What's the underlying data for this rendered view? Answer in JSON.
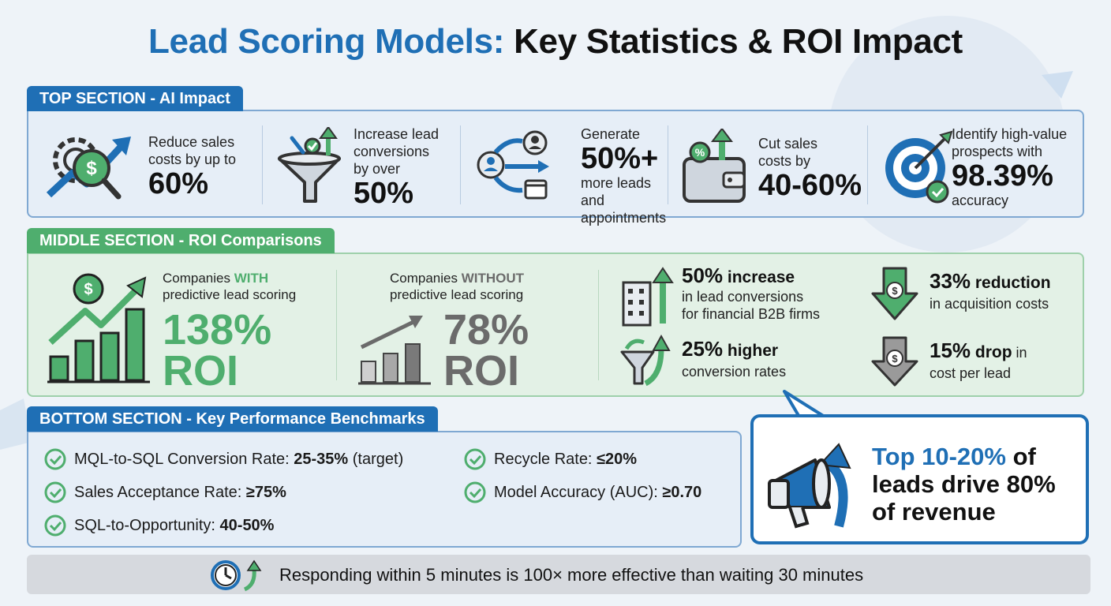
{
  "title": {
    "part1": "Lead Scoring Models:",
    "part2": "Key Statistics & ROI Impact"
  },
  "top": {
    "label": "TOP SECTION - AI Impact",
    "items": [
      {
        "line1": "Reduce sales",
        "line2": "costs by up to",
        "big": "60%",
        "icon": "gear-dollar-growth-icon"
      },
      {
        "line1": "Increase lead",
        "line2": "conversions",
        "line3": "by over",
        "big": "50%",
        "icon": "funnel-icon"
      },
      {
        "line1": "Generate",
        "big": "50%+",
        "line2": "more leads and",
        "line3": "appointments",
        "icon": "lead-flow-icon"
      },
      {
        "line1": "Cut sales",
        "line2": "costs by",
        "big": "40-60%",
        "icon": "wallet-icon"
      },
      {
        "line1": "Identify high-value",
        "line2": "prospects with",
        "big": "98.39%",
        "line3": "accuracy",
        "icon": "target-icon"
      }
    ]
  },
  "middle": {
    "label": "MIDDLE SECTION - ROI Comparisons",
    "with": {
      "pre": "Companies ",
      "emph": "WITH",
      "line2": "predictive lead scoring",
      "roi": "138%",
      "roi_label": "ROI",
      "color": "#4fae6e"
    },
    "without": {
      "pre": "Companies ",
      "emph": "WITHOUT",
      "line2": "predictive lead scoring",
      "roi": "78%",
      "roi_label": "ROI",
      "color": "#6b6b6b"
    },
    "stats": [
      {
        "big": "50%",
        "mid": " increase",
        "line2": "in lead conversions",
        "line3": "for financial B2B firms"
      },
      {
        "big": "33%",
        "mid": " reduction",
        "line2": "in acquisition costs"
      },
      {
        "big": "25%",
        "mid": " higher",
        "line2": "conversion rates"
      },
      {
        "big": "15%",
        "mid": " drop",
        "small": " in",
        "line2": "cost per lead"
      }
    ]
  },
  "bottom": {
    "label": "BOTTOM SECTION - Key Performance Benchmarks",
    "benchmarks": [
      {
        "label": "MQL-to-SQL Conversion Rate: ",
        "value": "25-35%",
        "suffix": " (target)"
      },
      {
        "label": "Recycle Rate: ",
        "value": "≤20%",
        "suffix": ""
      },
      {
        "label": "Sales Acceptance Rate: ",
        "value": "≥75%",
        "suffix": ""
      },
      {
        "label": "Model Accuracy (AUC): ",
        "value": "≥0.70",
        "suffix": ""
      },
      {
        "label": "SQL-to-Opportunity: ",
        "value": "40-50%",
        "suffix": ""
      }
    ]
  },
  "callout": {
    "hl1": "Top 10-20%",
    "rest1": " of",
    "line2": "leads drive 80%",
    "line3": "of revenue"
  },
  "footer": {
    "text": "Responding within 5 minutes is 100× more effective than waiting 30 minutes"
  },
  "colors": {
    "blue": "#1f6fb5",
    "green": "#4fae6e",
    "gray": "#6b6b6b"
  }
}
